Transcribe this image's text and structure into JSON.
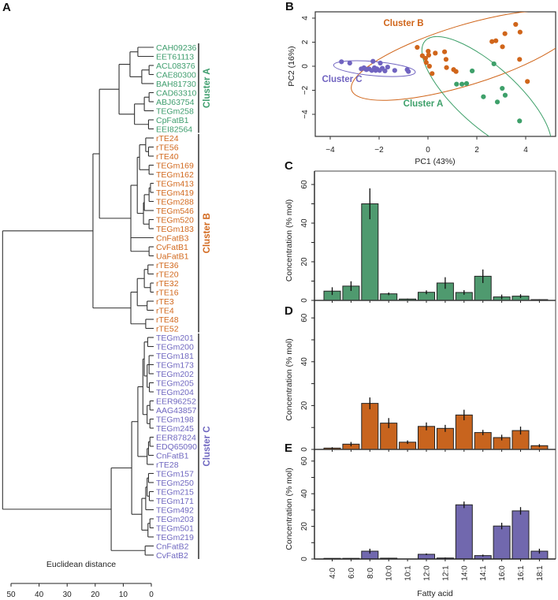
{
  "panel_labels": {
    "a": "A",
    "b": "B",
    "c": "C",
    "d": "D",
    "e": "E"
  },
  "chart_data": [
    {
      "type": "dendrogram",
      "xlabel": "Euclidean distance",
      "xticks": [
        "50",
        "40",
        "30",
        "20",
        "10",
        "0"
      ],
      "xtick_values": [
        50,
        40,
        30,
        20,
        10,
        0
      ],
      "clusters": [
        {
          "name": "A",
          "label": "Cluster A",
          "color": "#3f9e6e"
        },
        {
          "name": "B",
          "label": "Cluster B",
          "color": "#d2691e"
        },
        {
          "name": "C",
          "label": "Cluster C",
          "color": "#6f67c0"
        }
      ],
      "leaves": [
        {
          "label": "CAH09236",
          "cluster": "A"
        },
        {
          "label": "EET61113",
          "cluster": "A"
        },
        {
          "label": "ACL08376",
          "cluster": "A"
        },
        {
          "label": "CAE80300",
          "cluster": "A"
        },
        {
          "label": "BAH81730",
          "cluster": "A"
        },
        {
          "label": "CAD63310",
          "cluster": "A"
        },
        {
          "label": "ABJ63754",
          "cluster": "A"
        },
        {
          "label": "TEGm258",
          "cluster": "A"
        },
        {
          "label": "CpFatB1",
          "cluster": "A"
        },
        {
          "label": "EEI82564",
          "cluster": "A"
        },
        {
          "label": "rTE24",
          "cluster": "B"
        },
        {
          "label": "rTE56",
          "cluster": "B"
        },
        {
          "label": "rTE40",
          "cluster": "B"
        },
        {
          "label": "TEGm169",
          "cluster": "B"
        },
        {
          "label": "TEGm162",
          "cluster": "B"
        },
        {
          "label": "TEGm413",
          "cluster": "B"
        },
        {
          "label": "TEGm419",
          "cluster": "B"
        },
        {
          "label": "TEGm288",
          "cluster": "B"
        },
        {
          "label": "TEGm546",
          "cluster": "B"
        },
        {
          "label": "TEGm520",
          "cluster": "B"
        },
        {
          "label": "TEGm183",
          "cluster": "B"
        },
        {
          "label": "CnFatB3",
          "cluster": "B"
        },
        {
          "label": "CvFatB1",
          "cluster": "B"
        },
        {
          "label": "UaFatB1",
          "cluster": "B"
        },
        {
          "label": "rTE36",
          "cluster": "B"
        },
        {
          "label": "rTE20",
          "cluster": "B"
        },
        {
          "label": "rTE32",
          "cluster": "B"
        },
        {
          "label": "rTE16",
          "cluster": "B"
        },
        {
          "label": "rTE3",
          "cluster": "B"
        },
        {
          "label": "rTE4",
          "cluster": "B"
        },
        {
          "label": "rTE48",
          "cluster": "B"
        },
        {
          "label": "rTE52",
          "cluster": "B"
        },
        {
          "label": "TEGm201",
          "cluster": "C"
        },
        {
          "label": "TEGm200",
          "cluster": "C"
        },
        {
          "label": "TEGm181",
          "cluster": "C"
        },
        {
          "label": "TEGm173",
          "cluster": "C"
        },
        {
          "label": "TEGm202",
          "cluster": "C"
        },
        {
          "label": "TEGm205",
          "cluster": "C"
        },
        {
          "label": "TEGm204",
          "cluster": "C"
        },
        {
          "label": "EER96252",
          "cluster": "C"
        },
        {
          "label": "AAG43857",
          "cluster": "C"
        },
        {
          "label": "TEGm198",
          "cluster": "C"
        },
        {
          "label": "TEGm245",
          "cluster": "C"
        },
        {
          "label": "EER87824",
          "cluster": "C"
        },
        {
          "label": "EDQ65090",
          "cluster": "C"
        },
        {
          "label": "CnFatB1",
          "cluster": "C"
        },
        {
          "label": "rTE28",
          "cluster": "C"
        },
        {
          "label": "TEGm157",
          "cluster": "C"
        },
        {
          "label": "TEGm250",
          "cluster": "C"
        },
        {
          "label": "TEGm215",
          "cluster": "C"
        },
        {
          "label": "TEGm171",
          "cluster": "C"
        },
        {
          "label": "TEGm492",
          "cluster": "C"
        },
        {
          "label": "TEGm203",
          "cluster": "C"
        },
        {
          "label": "TEGm501",
          "cluster": "C"
        },
        {
          "label": "TEGm219",
          "cluster": "C"
        },
        {
          "label": "CnFatB2",
          "cluster": "C"
        },
        {
          "label": "CvFatB2",
          "cluster": "C"
        }
      ]
    },
    {
      "type": "scatter",
      "xlabel": "PC1 (43%)",
      "ylabel": "PC2 (16%)",
      "xlim": [
        -4.6,
        5.2
      ],
      "ylim": [
        -5.8,
        4.5
      ],
      "xticks": [
        {
          "v": -4,
          "t": "−4"
        },
        {
          "v": -2,
          "t": "−2"
        },
        {
          "v": 0,
          "t": "0"
        },
        {
          "v": 2,
          "t": "2"
        },
        {
          "v": 4,
          "t": "4"
        }
      ],
      "yticks": [
        {
          "v": -4,
          "t": "−4"
        },
        {
          "v": -2,
          "t": "−2"
        },
        {
          "v": 0,
          "t": "0"
        },
        {
          "v": 2,
          "t": "2"
        },
        {
          "v": 4,
          "t": "4"
        }
      ],
      "series": [
        {
          "name": "B",
          "label": "Cluster B",
          "color": "#d0651a",
          "ellipse_center": [
            1.5,
            0.9
          ],
          "points": [
            [
              -0.44,
              1.57
            ],
            [
              -0.23,
              0.87
            ],
            [
              -0.1,
              0.66
            ],
            [
              -0.07,
              0.31
            ],
            [
              0.01,
              1.25
            ],
            [
              0.03,
              0.92
            ],
            [
              0.06,
              0.0
            ],
            [
              0.17,
              -0.61
            ],
            [
              0.3,
              1.09
            ],
            [
              0.68,
              1.2
            ],
            [
              0.74,
              0.57
            ],
            [
              0.76,
              -0.11
            ],
            [
              1.05,
              -0.28
            ],
            [
              1.15,
              -0.44
            ],
            [
              2.62,
              2.05
            ],
            [
              2.78,
              2.12
            ],
            [
              3.05,
              1.62
            ],
            [
              3.15,
              2.71
            ],
            [
              3.59,
              3.48
            ],
            [
              3.77,
              2.84
            ],
            [
              3.75,
              0.57
            ],
            [
              4.07,
              -1.27
            ]
          ]
        },
        {
          "name": "A",
          "label": "Cluster A",
          "color": "#3ea06a",
          "ellipse_center": [
            2.4,
            -2.5
          ],
          "points": [
            [
              2.7,
              0.2
            ],
            [
              1.81,
              -0.39
            ],
            [
              1.17,
              -1.49
            ],
            [
              1.39,
              -1.49
            ],
            [
              1.58,
              -1.44
            ],
            [
              2.27,
              -2.54
            ],
            [
              2.84,
              -2.97
            ],
            [
              3.04,
              -1.84
            ],
            [
              3.16,
              -2.41
            ],
            [
              3.75,
              -4.55
            ]
          ]
        },
        {
          "name": "C",
          "label": "Cluster C",
          "color": "#7063c0",
          "ellipse_center": [
            -2.19,
            -0.2
          ],
          "points": [
            [
              -3.54,
              0.37
            ],
            [
              -3.2,
              0.26
            ],
            [
              -2.25,
              0.41
            ],
            [
              -1.95,
              0.26
            ],
            [
              -2.73,
              -0.22
            ],
            [
              -2.62,
              -0.13
            ],
            [
              -2.52,
              -0.28
            ],
            [
              -2.41,
              -0.22
            ],
            [
              -2.3,
              -0.35
            ],
            [
              -2.19,
              -0.13
            ],
            [
              -2.09,
              -0.22
            ],
            [
              -1.98,
              -0.35
            ],
            [
              -1.87,
              -0.17
            ],
            [
              -1.76,
              -0.39
            ],
            [
              -1.65,
              -0.07
            ],
            [
              -1.36,
              -0.35
            ],
            [
              -0.85,
              -0.28
            ],
            [
              -0.8,
              -0.44
            ],
            [
              -2.57,
              -0.22
            ],
            [
              -2.14,
              -0.35
            ]
          ]
        }
      ]
    },
    {
      "type": "bar",
      "panel": "C",
      "cluster": "Cluster A",
      "color": "#4f9a6f",
      "ylabel": "Concentration (% mol)",
      "xlabel": "",
      "ylim": [
        0,
        60
      ],
      "yticks": [
        "0",
        "20",
        "40",
        "60"
      ],
      "ytick_values": [
        0,
        20,
        40,
        60
      ],
      "categories": [
        "4:0",
        "6:0",
        "8:0",
        "10:0",
        "10:1",
        "12:0",
        "12:1",
        "14:0",
        "14:1",
        "16:0",
        "16:1",
        "18:1"
      ],
      "values": [
        4.8,
        7.4,
        50,
        3.4,
        0.7,
        4.2,
        9,
        4.1,
        12.5,
        1.8,
        2.2,
        0.4
      ],
      "errors": [
        2,
        2.5,
        8,
        0.7,
        0.2,
        1,
        3,
        1.2,
        3.5,
        1.2,
        1,
        0.2
      ]
    },
    {
      "type": "bar",
      "panel": "D",
      "cluster": "Cluster B",
      "color": "#c8641e",
      "ylabel": "Concentration (% mol)",
      "xlabel": "",
      "ylim": [
        0,
        60
      ],
      "yticks": [
        "0",
        "20",
        "40",
        "60"
      ],
      "ytick_values": [
        0,
        20,
        40,
        60
      ],
      "categories": [
        "4:0",
        "6:0",
        "8:0",
        "10:0",
        "10:1",
        "12:0",
        "12:1",
        "14:0",
        "14:1",
        "16:0",
        "16:1",
        "18:1"
      ],
      "values": [
        0.6,
        2.4,
        21,
        12,
        3.3,
        10.5,
        9.6,
        15.7,
        7.7,
        5.4,
        8.6,
        1.7
      ],
      "errors": [
        0.4,
        1,
        2.7,
        2.3,
        0.8,
        1.8,
        1.6,
        2.4,
        1.2,
        1.3,
        1.8,
        0.7
      ]
    },
    {
      "type": "bar",
      "panel": "E",
      "cluster": "Cluster C",
      "color": "#7168ae",
      "ylabel": "Concentration (% mol)",
      "xlabel": "Fatty acid",
      "ylim": [
        0,
        60
      ],
      "yticks": [
        "0",
        "20",
        "40",
        "60"
      ],
      "ytick_values": [
        0,
        20,
        40,
        60
      ],
      "categories": [
        "4:0",
        "6:0",
        "8:0",
        "10:0",
        "10:1",
        "12:0",
        "12:1",
        "14:0",
        "14:1",
        "16:0",
        "16:1",
        "18:1"
      ],
      "values": [
        0.3,
        0.4,
        4.8,
        0.5,
        0,
        2.9,
        0.6,
        33.2,
        2.1,
        20.2,
        29.5,
        4.8
      ],
      "errors": [
        0.1,
        0.1,
        1.5,
        0.2,
        0,
        0.5,
        0.3,
        2,
        0.6,
        2,
        2.3,
        1.5
      ]
    }
  ]
}
